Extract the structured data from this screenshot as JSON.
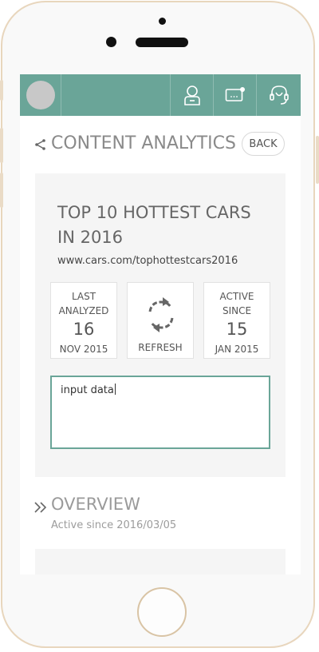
{
  "navbar": {
    "icons": [
      "user-icon",
      "message-icon",
      "support-icon"
    ],
    "color": "#6aa598"
  },
  "header": {
    "title": "CONTENT ANALYTICS",
    "back_label": "BACK"
  },
  "card": {
    "title": "TOP 10 HOTTEST CARS IN 2016",
    "url": "www.cars.com/tophottestcars2016",
    "stats": [
      {
        "label_line1": "LAST",
        "label_line2": "ANALYZED",
        "number": "16",
        "foot": "NOV 2015"
      },
      {
        "label_line1": "ACTIVE",
        "label_line2": "SINCE",
        "number": "15",
        "foot": "JAN 2015"
      }
    ],
    "refresh_label": "REFRESH",
    "input_value": "input data"
  },
  "overview": {
    "title": "OVERVIEW",
    "subtitle": "Active since 2016/03/05"
  }
}
